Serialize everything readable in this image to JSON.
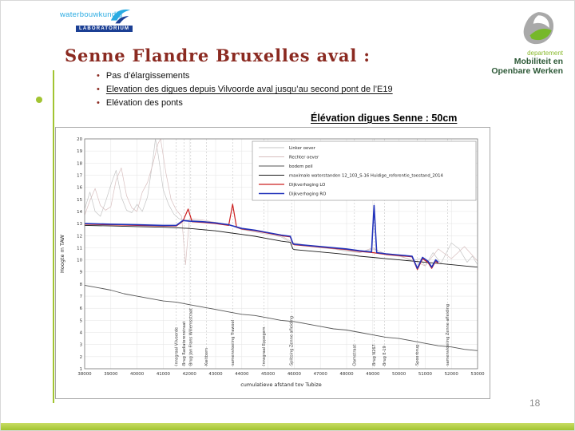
{
  "slide": {
    "title": "Senne Flandre Bruxelles aval :",
    "bullets": [
      {
        "text": "Pas d’élargissements",
        "underline": false
      },
      {
        "text": "Elevation des digues depuis Vilvoorde aval  jusqu’au second pont de l’E19",
        "underline": true
      },
      {
        "text": "Elévation des ponts",
        "underline": false
      }
    ],
    "caption": "Élévation digues Senne : 50cm",
    "page_number": "18",
    "accent_green": "#a2c432",
    "title_color": "#8b2a21"
  },
  "logos": {
    "waterbouwkundig": {
      "line1": "waterbouwkundig",
      "line2": "LABORATORIUM"
    },
    "mow": {
      "line1": "departement",
      "line2": "Mobiliteit en",
      "line3": "Openbare Werken"
    }
  },
  "chart_data": {
    "type": "line",
    "title": "",
    "xlabel": "cumulatieve afstand tov Tubize",
    "ylabel": "Hoogte m TAW",
    "xlim": [
      38000,
      53000
    ],
    "ylim": [
      1,
      20
    ],
    "xstep": 1000,
    "ystep": 1,
    "grid": true,
    "legend_position": "top-right",
    "series": [
      {
        "name": "Linker oever",
        "color": "#c4c4c4",
        "width": 0.7,
        "points": [
          [
            38000,
            14.2
          ],
          [
            38200,
            15.6
          ],
          [
            38400,
            14.0
          ],
          [
            38600,
            13.6
          ],
          [
            38800,
            14.8
          ],
          [
            39000,
            16.2
          ],
          [
            39200,
            17.4
          ],
          [
            39400,
            15.2
          ],
          [
            39600,
            14.1
          ],
          [
            39800,
            13.9
          ],
          [
            40000,
            14.6
          ],
          [
            40200,
            14.0
          ],
          [
            40400,
            15.2
          ],
          [
            40600,
            18.2
          ],
          [
            40700,
            20.0
          ],
          [
            40800,
            18.8
          ],
          [
            41000,
            15.8
          ],
          [
            41200,
            14.6
          ],
          [
            41400,
            13.8
          ],
          [
            41600,
            13.4
          ],
          [
            41800,
            13.3
          ],
          [
            42000,
            13.3
          ],
          [
            42500,
            13.2
          ],
          [
            43000,
            13.1
          ],
          [
            43500,
            12.9
          ],
          [
            44000,
            12.5
          ],
          [
            44500,
            12.3
          ],
          [
            45000,
            12.1
          ],
          [
            45500,
            11.9
          ],
          [
            45900,
            11.4
          ],
          [
            46000,
            11.3
          ],
          [
            46500,
            11.2
          ],
          [
            47000,
            11.0
          ],
          [
            47500,
            10.9
          ],
          [
            48000,
            10.7
          ],
          [
            48500,
            10.6
          ],
          [
            49000,
            10.9
          ],
          [
            49500,
            10.5
          ],
          [
            50000,
            10.4
          ],
          [
            50500,
            9.9
          ],
          [
            50800,
            10.1
          ],
          [
            51000,
            9.5
          ],
          [
            51300,
            10.6
          ],
          [
            51600,
            9.7
          ],
          [
            52000,
            11.4
          ],
          [
            52300,
            10.9
          ],
          [
            52600,
            9.8
          ],
          [
            52800,
            10.3
          ],
          [
            53000,
            9.6
          ]
        ]
      },
      {
        "name": "Rechter oever",
        "color": "#d8bfbf",
        "width": 0.7,
        "points": [
          [
            38000,
            13.7
          ],
          [
            38200,
            14.9
          ],
          [
            38400,
            15.9
          ],
          [
            38600,
            14.5
          ],
          [
            38800,
            14.1
          ],
          [
            39000,
            14.4
          ],
          [
            39200,
            16.6
          ],
          [
            39400,
            17.6
          ],
          [
            39600,
            15.3
          ],
          [
            39800,
            14.3
          ],
          [
            40000,
            14.0
          ],
          [
            40200,
            15.6
          ],
          [
            40400,
            16.4
          ],
          [
            40600,
            17.9
          ],
          [
            40800,
            19.6
          ],
          [
            40900,
            20.0
          ],
          [
            41100,
            17.2
          ],
          [
            41300,
            15.0
          ],
          [
            41500,
            14.1
          ],
          [
            41700,
            13.6
          ],
          [
            41850,
            9.6
          ],
          [
            42000,
            13.4
          ],
          [
            42500,
            13.3
          ],
          [
            43000,
            13.1
          ],
          [
            43500,
            12.9
          ],
          [
            44000,
            12.6
          ],
          [
            44500,
            12.4
          ],
          [
            45000,
            12.2
          ],
          [
            45500,
            12.0
          ],
          [
            45900,
            11.5
          ],
          [
            46000,
            11.4
          ],
          [
            46500,
            11.2
          ],
          [
            47000,
            11.1
          ],
          [
            47500,
            10.9
          ],
          [
            48000,
            10.8
          ],
          [
            48500,
            10.6
          ],
          [
            49000,
            11.0
          ],
          [
            49500,
            10.4
          ],
          [
            50000,
            10.3
          ],
          [
            50500,
            10.0
          ],
          [
            51000,
            9.5
          ],
          [
            51500,
            10.9
          ],
          [
            52000,
            10.1
          ],
          [
            52500,
            11.1
          ],
          [
            53000,
            9.9
          ]
        ]
      },
      {
        "name": "bodem peil",
        "color": "#555555",
        "width": 0.9,
        "points": [
          [
            38000,
            7.9
          ],
          [
            38500,
            7.7
          ],
          [
            39000,
            7.5
          ],
          [
            39500,
            7.2
          ],
          [
            40000,
            7.0
          ],
          [
            40500,
            6.8
          ],
          [
            41000,
            6.6
          ],
          [
            41500,
            6.5
          ],
          [
            42000,
            6.3
          ],
          [
            42500,
            6.1
          ],
          [
            43000,
            5.9
          ],
          [
            43500,
            5.7
          ],
          [
            44000,
            5.5
          ],
          [
            44500,
            5.4
          ],
          [
            45000,
            5.2
          ],
          [
            45500,
            5.0
          ],
          [
            46000,
            4.9
          ],
          [
            46500,
            4.7
          ],
          [
            47000,
            4.5
          ],
          [
            47500,
            4.3
          ],
          [
            48000,
            4.2
          ],
          [
            48500,
            4.0
          ],
          [
            49000,
            3.8
          ],
          [
            49500,
            3.6
          ],
          [
            50000,
            3.5
          ],
          [
            50500,
            3.3
          ],
          [
            51000,
            3.1
          ],
          [
            51500,
            2.9
          ],
          [
            52000,
            2.8
          ],
          [
            52500,
            2.6
          ],
          [
            53000,
            2.5
          ]
        ]
      },
      {
        "name": "maximale waterstanden 12_103_S-16 Huidige_referentie_toestand_2014",
        "color": "#1a1a1a",
        "width": 0.9,
        "points": [
          [
            38000,
            12.85
          ],
          [
            39000,
            12.8
          ],
          [
            40000,
            12.75
          ],
          [
            41000,
            12.7
          ],
          [
            42000,
            12.6
          ],
          [
            42500,
            12.5
          ],
          [
            43000,
            12.4
          ],
          [
            43500,
            12.25
          ],
          [
            44000,
            12.1
          ],
          [
            44500,
            11.95
          ],
          [
            45000,
            11.75
          ],
          [
            45500,
            11.55
          ],
          [
            45850,
            11.45
          ],
          [
            45950,
            10.9
          ],
          [
            46000,
            10.85
          ],
          [
            46500,
            10.75
          ],
          [
            47000,
            10.65
          ],
          [
            47500,
            10.55
          ],
          [
            48000,
            10.45
          ],
          [
            48500,
            10.3
          ],
          [
            49000,
            10.2
          ],
          [
            49500,
            10.1
          ],
          [
            50000,
            10.0
          ],
          [
            50500,
            9.9
          ],
          [
            51000,
            9.8
          ],
          [
            51500,
            9.7
          ],
          [
            52000,
            9.6
          ],
          [
            52500,
            9.5
          ],
          [
            53000,
            9.4
          ]
        ]
      },
      {
        "name": "Dijkverhoging LO",
        "color": "#cc2020",
        "width": 1.2,
        "points": [
          [
            38000,
            12.95
          ],
          [
            39000,
            12.9
          ],
          [
            40000,
            12.85
          ],
          [
            41000,
            12.8
          ],
          [
            41500,
            12.8
          ],
          [
            41750,
            13.2
          ],
          [
            41950,
            14.2
          ],
          [
            42100,
            13.15
          ],
          [
            42500,
            13.1
          ],
          [
            43000,
            13.0
          ],
          [
            43500,
            12.85
          ],
          [
            43650,
            14.6
          ],
          [
            43800,
            12.7
          ],
          [
            44000,
            12.55
          ],
          [
            44500,
            12.4
          ],
          [
            45000,
            12.2
          ],
          [
            45500,
            12.0
          ],
          [
            45850,
            11.9
          ],
          [
            45950,
            11.3
          ],
          [
            46000,
            11.25
          ],
          [
            46500,
            11.15
          ],
          [
            47000,
            11.05
          ],
          [
            47500,
            10.95
          ],
          [
            48000,
            10.85
          ],
          [
            48500,
            10.7
          ],
          [
            49000,
            10.6
          ],
          [
            49500,
            10.45
          ],
          [
            50000,
            10.35
          ],
          [
            50500,
            10.25
          ],
          [
            50700,
            9.2
          ],
          [
            50900,
            10.1
          ],
          [
            51100,
            9.8
          ],
          [
            51250,
            9.3
          ],
          [
            51400,
            9.9
          ],
          [
            51500,
            9.7
          ]
        ]
      },
      {
        "name": "Dijkverhoging RO",
        "color": "#2233bb",
        "width": 1.6,
        "points": [
          [
            38000,
            13.0
          ],
          [
            39000,
            12.95
          ],
          [
            40000,
            12.9
          ],
          [
            41000,
            12.85
          ],
          [
            41500,
            12.85
          ],
          [
            41750,
            13.25
          ],
          [
            42000,
            13.2
          ],
          [
            42500,
            13.15
          ],
          [
            43000,
            13.05
          ],
          [
            43500,
            12.9
          ],
          [
            44000,
            12.6
          ],
          [
            44500,
            12.45
          ],
          [
            45000,
            12.25
          ],
          [
            45500,
            12.05
          ],
          [
            45850,
            11.95
          ],
          [
            45950,
            11.35
          ],
          [
            46000,
            11.3
          ],
          [
            46500,
            11.2
          ],
          [
            47000,
            11.1
          ],
          [
            47500,
            11.0
          ],
          [
            48000,
            10.9
          ],
          [
            48500,
            10.75
          ],
          [
            48950,
            10.65
          ],
          [
            49050,
            14.5
          ],
          [
            49150,
            10.6
          ],
          [
            49500,
            10.5
          ],
          [
            50000,
            10.4
          ],
          [
            50500,
            10.3
          ],
          [
            50700,
            9.3
          ],
          [
            50900,
            10.2
          ],
          [
            51100,
            9.9
          ],
          [
            51250,
            9.4
          ],
          [
            51400,
            10.0
          ],
          [
            51500,
            9.8
          ]
        ]
      }
    ],
    "markers": [
      {
        "x": 41500,
        "label": "Innsgraal Vilvoorde"
      },
      {
        "x": 41800,
        "label": "Brug Radiatorenstraat"
      },
      {
        "x": 42050,
        "label": "Brug Jan Frans Willemsstraat"
      },
      {
        "x": 42650,
        "label": "Kwitborn"
      },
      {
        "x": 43650,
        "label": "samenvloeiing Trawool"
      },
      {
        "x": 44850,
        "label": "Innsgraal Eppegem"
      },
      {
        "x": 45900,
        "label": "Splitsing Zenne afleiding"
      },
      {
        "x": 48300,
        "label": "Damstraat"
      },
      {
        "x": 49050,
        "label": "Brug N267"
      },
      {
        "x": 49450,
        "label": "Brug E-19"
      },
      {
        "x": 50700,
        "label": "Spoorbrug"
      },
      {
        "x": 51850,
        "label": "samenvloeiing Zenne afleiding"
      }
    ]
  }
}
